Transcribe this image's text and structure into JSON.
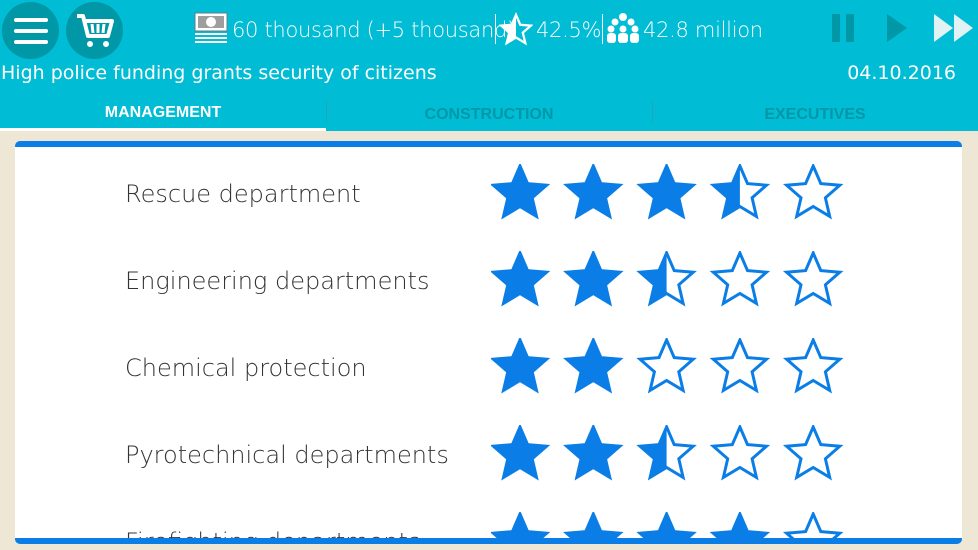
{
  "header": {
    "menu_icon": "hamburger-menu-icon",
    "shop_icon": "shopping-cart-icon",
    "money": "60 thousand (+5 thousand)",
    "approval": "42.5%",
    "population": "42.8 million",
    "message": "High police funding grants security of citizens",
    "date": "04.10.2016"
  },
  "tabs": [
    {
      "label": "MANAGEMENT",
      "selected": true
    },
    {
      "label": "CONSTRUCTION",
      "selected": false
    },
    {
      "label": "EXECUTIVES",
      "selected": false
    }
  ],
  "colors": {
    "header": "#00bcd4",
    "accent": "#0a7ee6",
    "background": "#efe7d6"
  },
  "departments": [
    {
      "name": "Rescue department",
      "rating": 3.5
    },
    {
      "name": "Engineering departments",
      "rating": 2.5
    },
    {
      "name": "Chemical protection",
      "rating": 2
    },
    {
      "name": "Pyrotechnical departments",
      "rating": 2.5
    },
    {
      "name": "Firefighting departments",
      "rating": 4
    }
  ],
  "max_rating": 5
}
